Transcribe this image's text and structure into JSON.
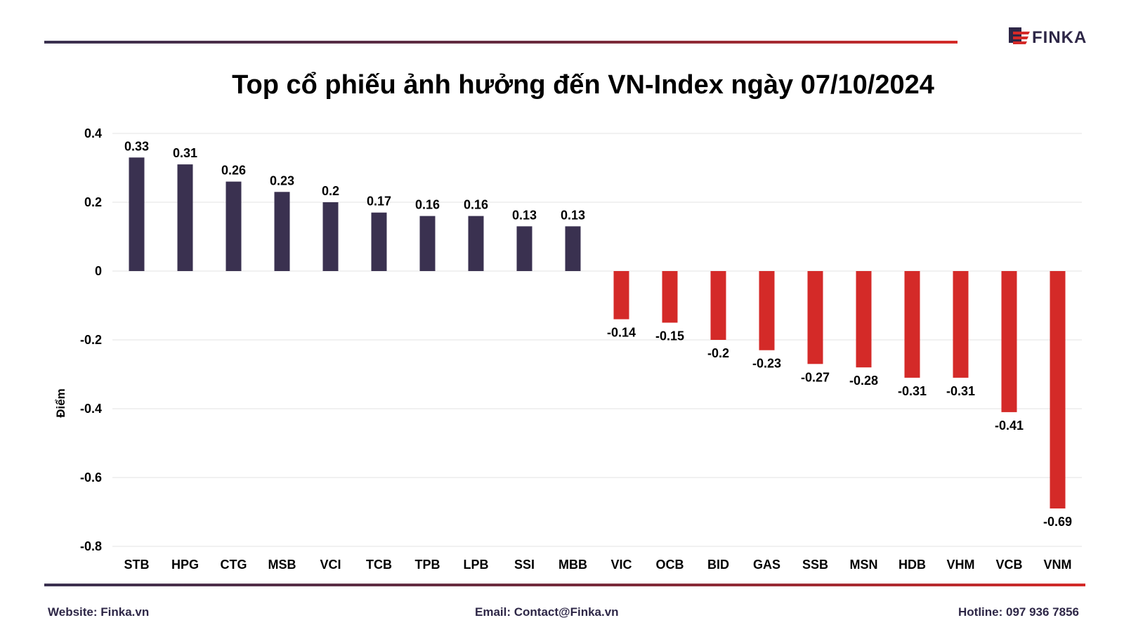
{
  "logo": {
    "text": "FINKA",
    "colors": {
      "dark": "#2e2747",
      "red": "#d42a28"
    }
  },
  "footer": {
    "website": "Website: Finka.vn",
    "email": "Email: Contact@Finka.vn",
    "hotline": "Hotline: 097 936 7856"
  },
  "chart_data": {
    "type": "bar",
    "title": "Top cổ phiếu ảnh hưởng đến VN-Index ngày 07/10/2024",
    "ylabel": "Điểm",
    "xlabel": "",
    "ylim": [
      -0.8,
      0.4
    ],
    "yticks": [
      0.4,
      0.2,
      0,
      -0.2,
      -0.4,
      -0.6,
      -0.8
    ],
    "ytick_labels": [
      "0.4",
      "0.2",
      "0",
      "-0.2",
      "-0.4",
      "-0.6",
      "-0.8"
    ],
    "grid": true,
    "categories": [
      "STB",
      "HPG",
      "CTG",
      "MSB",
      "VCI",
      "TCB",
      "TPB",
      "LPB",
      "SSI",
      "MBB",
      "VIC",
      "OCB",
      "BID",
      "GAS",
      "SSB",
      "MSN",
      "HDB",
      "VHM",
      "VCB",
      "VNM"
    ],
    "values": [
      0.33,
      0.31,
      0.26,
      0.23,
      0.2,
      0.17,
      0.16,
      0.16,
      0.13,
      0.13,
      -0.14,
      -0.15,
      -0.2,
      -0.23,
      -0.27,
      -0.28,
      -0.31,
      -0.31,
      -0.41,
      -0.69
    ],
    "value_labels": [
      "0.33",
      "0.31",
      "0.26",
      "0.23",
      "0.2",
      "0.17",
      "0.16",
      "0.16",
      "0.13",
      "0.13",
      "-0.14",
      "-0.15",
      "-0.2",
      "-0.23",
      "-0.27",
      "-0.28",
      "-0.31",
      "-0.31",
      "-0.41",
      "-0.69"
    ],
    "colors": {
      "positive": "#3a3150",
      "negative": "#d42a28",
      "grid": "#e3e3e3"
    }
  }
}
